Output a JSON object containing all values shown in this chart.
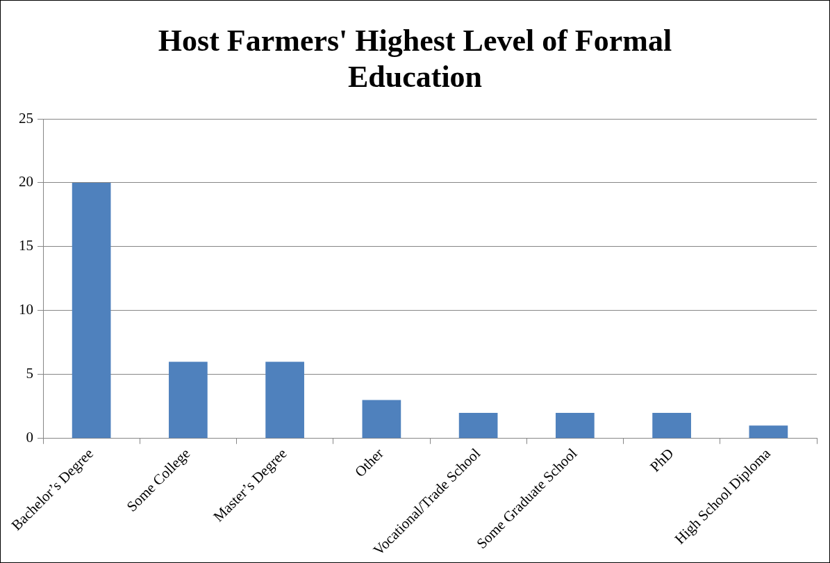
{
  "chart_data": {
    "type": "bar",
    "title": "Host Farmers' Highest Level of Formal Education",
    "categories": [
      "Bachelor’s Degree",
      "Some College",
      "Master’s Degree",
      "Other",
      "Vocational/Trade School",
      "Some Graduate School",
      "PhD",
      "High School Diploma"
    ],
    "values": [
      20,
      6,
      6,
      3,
      2,
      2,
      2,
      1
    ],
    "color": "#4f81bd",
    "ylim": [
      0,
      25
    ],
    "yticks": [
      0,
      5,
      10,
      15,
      20,
      25
    ],
    "grid": "y",
    "legend": false
  }
}
